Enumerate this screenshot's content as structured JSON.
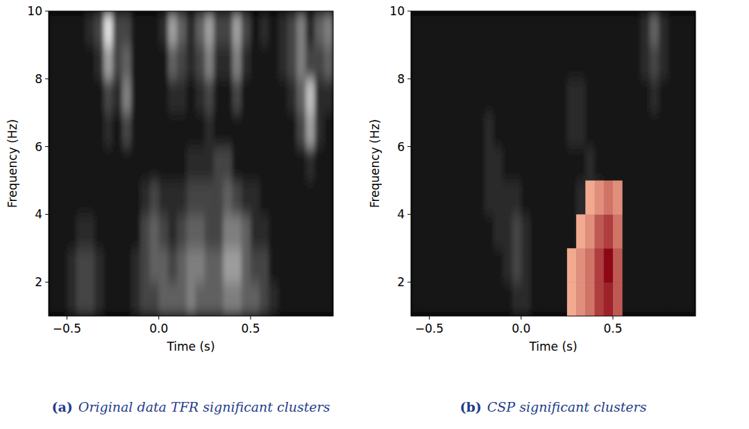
{
  "chart_data": [
    {
      "type": "heatmap",
      "panel": "(a)",
      "caption": "Original data TFR significant clusters",
      "x_label": "Time (s)",
      "y_label": "Frequency (Hz)",
      "xlim": [
        -0.6,
        0.95
      ],
      "ylim": [
        1,
        10
      ],
      "xticks": [
        {
          "value": -0.5,
          "label": "−0.5"
        },
        {
          "value": 0,
          "label": "0.0"
        },
        0.5
      ],
      "yticks": [
        2,
        4,
        6,
        8,
        10
      ],
      "x": [
        -0.575,
        -0.525,
        -0.475,
        -0.425,
        -0.375,
        -0.325,
        -0.275,
        -0.225,
        -0.175,
        -0.125,
        -0.075,
        -0.025,
        0.025,
        0.075,
        0.125,
        0.175,
        0.225,
        0.275,
        0.325,
        0.375,
        0.425,
        0.475,
        0.525,
        0.575,
        0.625,
        0.675,
        0.725,
        0.775,
        0.825,
        0.875,
        0.925
      ],
      "y": [
        1.5,
        2.5,
        3.5,
        4.5,
        5.5,
        6.5,
        7.5,
        8.5,
        9.5
      ],
      "zlim": [
        0,
        9
      ],
      "cells": [
        [
          1,
          1,
          2,
          3,
          3,
          2,
          1,
          1,
          1,
          2,
          3,
          3,
          4,
          4,
          4,
          5,
          4,
          4,
          4,
          5,
          5,
          4,
          4,
          3,
          2,
          1,
          1,
          1,
          1,
          1,
          1
        ],
        [
          1,
          1,
          2,
          3,
          3,
          2,
          1,
          1,
          1,
          2,
          3,
          4,
          4,
          3,
          4,
          5,
          5,
          4,
          4,
          6,
          6,
          4,
          3,
          3,
          1,
          1,
          1,
          1,
          1,
          1,
          1
        ],
        [
          1,
          1,
          1,
          2,
          2,
          1,
          1,
          1,
          1,
          1,
          3,
          4,
          3,
          2,
          3,
          4,
          4,
          3,
          3,
          5,
          5,
          4,
          2,
          2,
          1,
          1,
          1,
          1,
          1,
          1,
          1
        ],
        [
          1,
          1,
          1,
          1,
          1,
          1,
          1,
          1,
          1,
          1,
          2,
          3,
          2,
          2,
          2,
          3,
          3,
          3,
          3,
          4,
          3,
          2,
          2,
          1,
          1,
          1,
          1,
          1,
          1,
          1,
          1
        ],
        [
          1,
          1,
          1,
          1,
          1,
          1,
          1,
          1,
          1,
          1,
          1,
          1,
          1,
          1,
          1,
          2,
          2,
          2,
          3,
          3,
          1,
          1,
          1,
          1,
          1,
          1,
          1,
          1,
          2,
          1,
          1
        ],
        [
          1,
          1,
          1,
          1,
          1,
          1,
          2,
          1,
          3,
          1,
          1,
          1,
          1,
          1,
          1,
          1,
          1,
          2,
          1,
          1,
          1,
          1,
          1,
          1,
          1,
          1,
          1,
          3,
          6,
          2,
          1
        ],
        [
          1,
          1,
          1,
          1,
          1,
          1,
          3,
          2,
          5,
          1,
          1,
          1,
          1,
          2,
          2,
          1,
          2,
          3,
          1,
          1,
          3,
          1,
          1,
          1,
          1,
          1,
          2,
          4,
          7,
          2,
          2
        ],
        [
          1,
          1,
          1,
          1,
          1,
          2,
          6,
          3,
          4,
          1,
          1,
          1,
          1,
          4,
          3,
          2,
          3,
          5,
          2,
          2,
          5,
          2,
          1,
          1,
          1,
          2,
          3,
          5,
          3,
          3,
          4
        ],
        [
          1,
          1,
          1,
          1,
          2,
          3,
          8,
          3,
          3,
          1,
          1,
          1,
          2,
          6,
          4,
          2,
          4,
          6,
          3,
          3,
          6,
          3,
          1,
          2,
          1,
          2,
          3,
          5,
          2,
          4,
          5
        ]
      ]
    },
    {
      "type": "heatmap",
      "panel": "(b)",
      "caption": "CSP significant clusters",
      "x_label": "Time (s)",
      "y_label": "Frequency (Hz)",
      "xlim": [
        -0.6,
        0.95
      ],
      "ylim": [
        1,
        10
      ],
      "xticks": [
        {
          "value": -0.5,
          "label": "−0.5"
        },
        {
          "value": 0,
          "label": "0.0"
        },
        0.5
      ],
      "yticks": [
        2,
        4,
        6,
        8,
        10
      ],
      "x": [
        -0.575,
        -0.525,
        -0.475,
        -0.425,
        -0.375,
        -0.325,
        -0.275,
        -0.225,
        -0.175,
        -0.125,
        -0.075,
        -0.025,
        0.025,
        0.075,
        0.125,
        0.175,
        0.225,
        0.275,
        0.325,
        0.375,
        0.425,
        0.475,
        0.525,
        0.575,
        0.625,
        0.675,
        0.725,
        0.775,
        0.825,
        0.875,
        0.925
      ],
      "y": [
        1.5,
        2.5,
        3.5,
        4.5,
        5.5,
        6.5,
        7.5,
        8.5,
        9.5
      ],
      "zlim": [
        0,
        9
      ],
      "cells": [
        [
          1,
          1,
          1,
          1,
          1,
          1,
          1,
          1,
          1,
          1,
          1,
          2,
          2,
          1,
          1,
          1,
          1,
          1,
          1,
          1,
          1,
          1,
          1,
          1,
          1,
          1,
          1,
          1,
          1,
          1,
          1
        ],
        [
          1,
          1,
          1,
          1,
          1,
          1,
          1,
          1,
          1,
          1,
          2,
          3,
          2,
          1,
          1,
          1,
          1,
          1,
          1,
          2,
          2,
          1,
          1,
          1,
          1,
          1,
          1,
          1,
          1,
          1,
          1
        ],
        [
          1,
          1,
          1,
          1,
          1,
          1,
          1,
          1,
          1,
          2,
          2,
          3,
          2,
          1,
          1,
          1,
          1,
          1,
          2,
          2,
          2,
          2,
          1,
          1,
          1,
          1,
          1,
          1,
          1,
          1,
          1
        ],
        [
          1,
          1,
          1,
          1,
          1,
          1,
          1,
          1,
          2,
          2,
          2,
          2,
          1,
          1,
          1,
          1,
          1,
          1,
          2,
          2,
          2,
          1,
          1,
          1,
          1,
          1,
          1,
          1,
          1,
          1,
          1
        ],
        [
          1,
          1,
          1,
          1,
          1,
          1,
          1,
          1,
          2,
          2,
          1,
          1,
          1,
          1,
          1,
          1,
          1,
          1,
          1,
          2,
          1,
          1,
          1,
          1,
          1,
          1,
          1,
          1,
          1,
          1,
          1
        ],
        [
          1,
          1,
          1,
          1,
          1,
          1,
          1,
          1,
          2,
          1,
          1,
          1,
          1,
          1,
          1,
          1,
          1,
          2,
          2,
          1,
          1,
          1,
          1,
          1,
          1,
          1,
          1,
          1,
          1,
          1,
          1
        ],
        [
          1,
          1,
          1,
          1,
          1,
          1,
          1,
          1,
          1,
          1,
          1,
          1,
          1,
          1,
          1,
          1,
          1,
          2,
          2,
          1,
          1,
          1,
          1,
          1,
          1,
          1,
          2,
          1,
          1,
          1,
          1
        ],
        [
          1,
          1,
          1,
          1,
          1,
          1,
          1,
          1,
          1,
          1,
          1,
          1,
          1,
          1,
          1,
          1,
          1,
          1,
          1,
          1,
          1,
          1,
          1,
          1,
          1,
          2,
          3,
          2,
          1,
          1,
          1
        ],
        [
          1,
          1,
          1,
          1,
          1,
          1,
          1,
          1,
          1,
          1,
          1,
          1,
          1,
          1,
          1,
          1,
          1,
          1,
          1,
          1,
          1,
          1,
          1,
          1,
          1,
          2,
          4,
          2,
          1,
          1,
          1
        ]
      ],
      "clusters": [
        [
          null,
          null,
          null,
          null,
          null,
          null,
          null,
          null,
          null,
          null,
          null,
          null,
          null,
          null,
          null,
          null,
          null,
          3,
          4,
          5,
          7,
          8,
          6,
          null,
          null,
          null,
          null,
          null,
          null,
          null,
          null
        ],
        [
          null,
          null,
          null,
          null,
          null,
          null,
          null,
          null,
          null,
          null,
          null,
          null,
          null,
          null,
          null,
          null,
          null,
          3,
          4,
          5,
          7,
          9,
          6,
          null,
          null,
          null,
          null,
          null,
          null,
          null,
          null
        ],
        [
          null,
          null,
          null,
          null,
          null,
          null,
          null,
          null,
          null,
          null,
          null,
          null,
          null,
          null,
          null,
          null,
          null,
          null,
          3,
          4,
          6,
          7,
          5,
          null,
          null,
          null,
          null,
          null,
          null,
          null,
          null
        ],
        [
          null,
          null,
          null,
          null,
          null,
          null,
          null,
          null,
          null,
          null,
          null,
          null,
          null,
          null,
          null,
          null,
          null,
          null,
          null,
          3,
          4,
          5,
          4,
          null,
          null,
          null,
          null,
          null,
          null,
          null,
          null
        ]
      ],
      "cluster_zlim": [
        0,
        9
      ]
    }
  ]
}
